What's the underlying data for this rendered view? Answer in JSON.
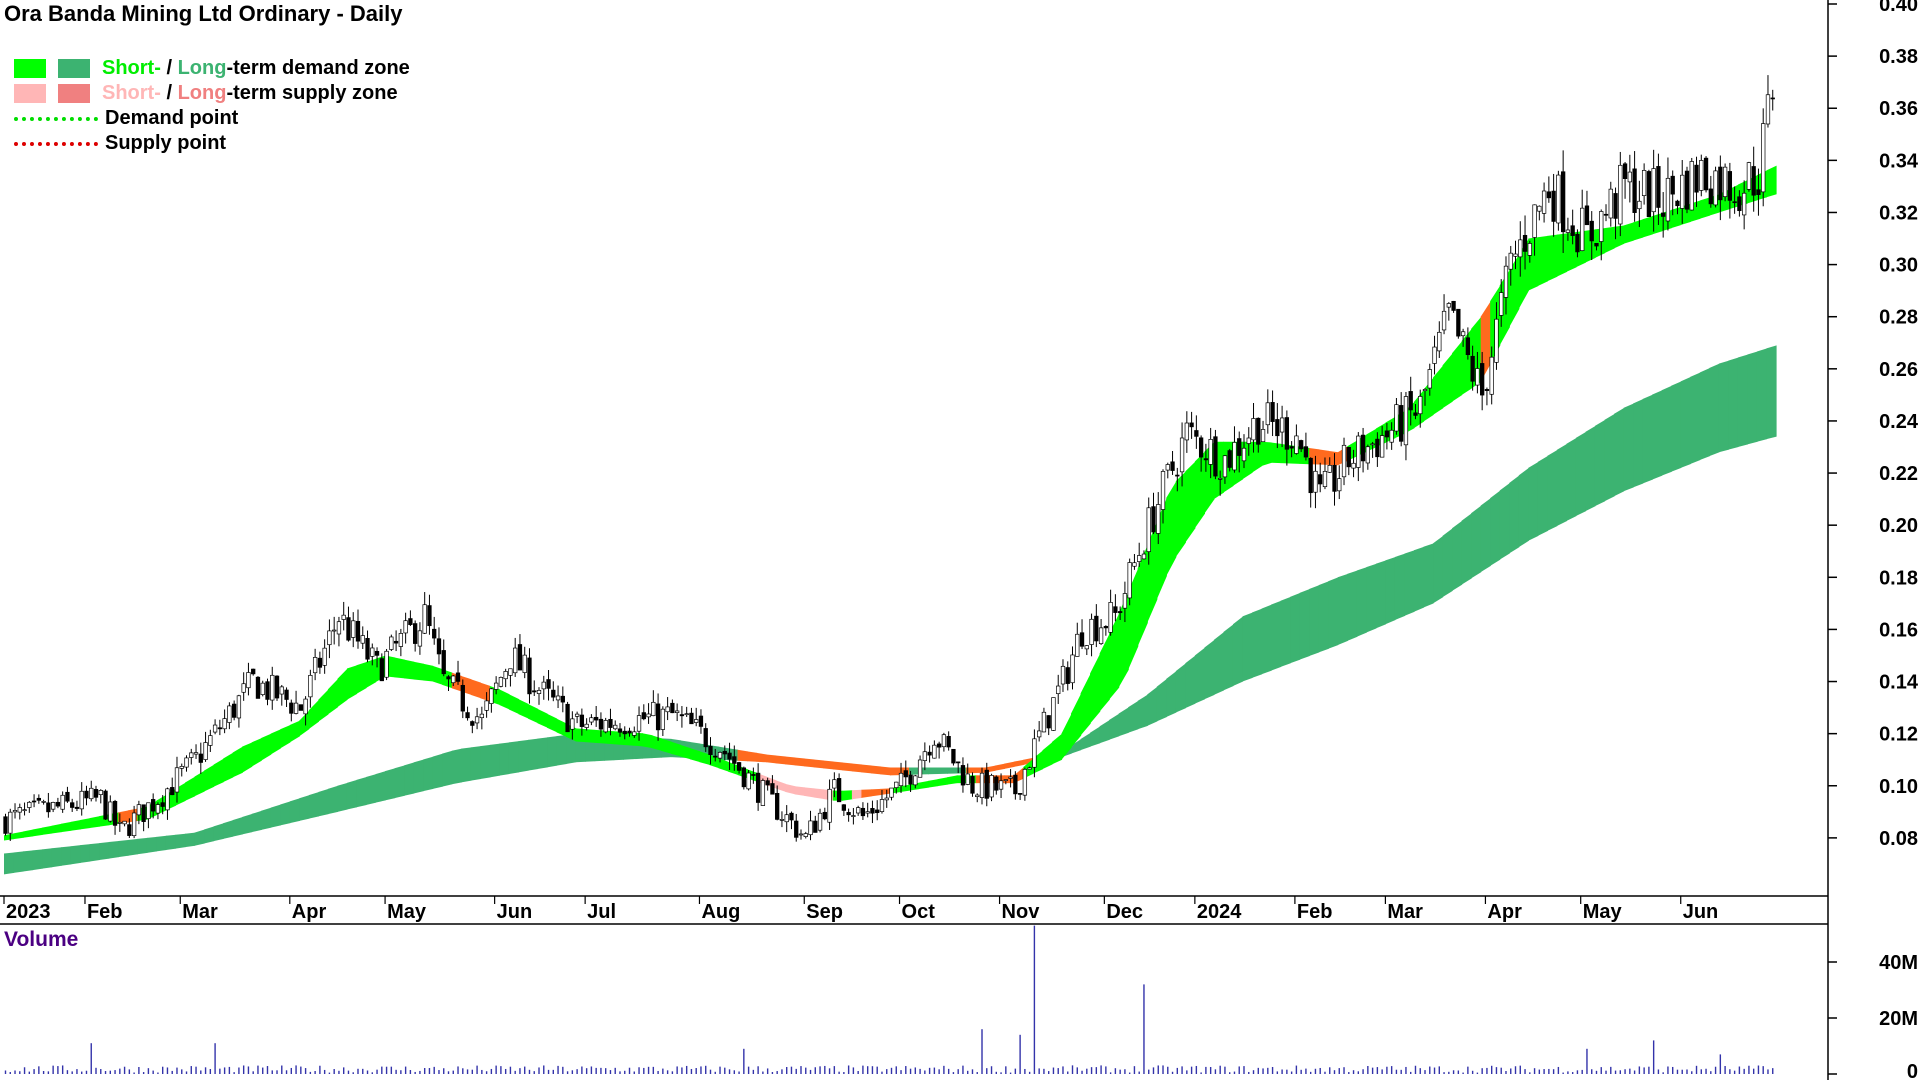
{
  "title": "Ora Banda Mining Ltd Ordinary - Daily",
  "legend": {
    "short_word": "Short-",
    "slash": " / ",
    "long_word": "Long",
    "demand_suffix": "-term demand zone",
    "supply_suffix": "-term supply zone",
    "demand_point": "Demand point",
    "supply_point": "Supply point"
  },
  "colors": {
    "short_demand": "#00ff00",
    "long_demand": "#3cb371",
    "short_supply": "#ffb6b6",
    "long_supply": "#f08080",
    "supply_zone_fill": "#ff6a1e",
    "demand_point": "#00dd00",
    "supply_point": "#dd0000",
    "volume": "#3333aa"
  },
  "volume_label": "Volume",
  "chart_data": {
    "type": "candlestick",
    "x_ticks": [
      "2023",
      "Feb",
      "Mar",
      "Apr",
      "May",
      "Jun",
      "Jul",
      "Aug",
      "Sep",
      "Oct",
      "Nov",
      "Dec",
      "2024",
      "Feb",
      "Mar",
      "Apr",
      "May",
      "Jun"
    ],
    "y_ticks": [
      "0.08",
      "0.10",
      "0.12",
      "0.14",
      "0.16",
      "0.18",
      "0.20",
      "0.22",
      "0.24",
      "0.26",
      "0.28",
      "0.30",
      "0.32",
      "0.34",
      "0.36",
      "0.38",
      "0.40"
    ],
    "ylim": [
      0.06,
      0.4
    ],
    "volume_ticks": [
      "0",
      "20M",
      "40M"
    ],
    "volume_ylim": [
      0,
      55
    ],
    "price_anchors": [
      [
        0,
        0.087
      ],
      [
        7,
        0.09
      ],
      [
        20,
        0.095
      ],
      [
        24,
        0.082
      ],
      [
        33,
        0.097
      ],
      [
        40,
        0.11
      ],
      [
        52,
        0.14
      ],
      [
        62,
        0.13
      ],
      [
        70,
        0.165
      ],
      [
        78,
        0.145
      ],
      [
        88,
        0.165
      ],
      [
        92,
        0.14
      ],
      [
        100,
        0.125
      ],
      [
        106,
        0.15
      ],
      [
        113,
        0.135
      ],
      [
        120,
        0.123
      ],
      [
        130,
        0.125
      ],
      [
        140,
        0.127
      ],
      [
        150,
        0.115
      ],
      [
        160,
        0.095
      ],
      [
        168,
        0.08
      ],
      [
        174,
        0.098
      ],
      [
        180,
        0.088
      ],
      [
        188,
        0.1
      ],
      [
        195,
        0.12
      ],
      [
        203,
        0.1
      ],
      [
        212,
        0.098
      ],
      [
        222,
        0.14
      ],
      [
        226,
        0.16
      ],
      [
        233,
        0.165
      ],
      [
        240,
        0.2
      ],
      [
        248,
        0.235
      ],
      [
        256,
        0.225
      ],
      [
        263,
        0.24
      ],
      [
        271,
        0.235
      ],
      [
        276,
        0.21
      ],
      [
        282,
        0.225
      ],
      [
        290,
        0.235
      ],
      [
        297,
        0.245
      ],
      [
        303,
        0.28
      ],
      [
        310,
        0.25
      ],
      [
        316,
        0.3
      ],
      [
        324,
        0.33
      ],
      [
        332,
        0.31
      ],
      [
        340,
        0.33
      ],
      [
        348,
        0.325
      ],
      [
        356,
        0.335
      ],
      [
        364,
        0.33
      ],
      [
        368,
        0.335
      ],
      [
        372,
        0.38
      ]
    ],
    "short_demand_upper": [
      [
        0,
        0.081
      ],
      [
        30,
        0.092
      ],
      [
        50,
        0.115
      ],
      [
        62,
        0.125
      ],
      [
        72,
        0.145
      ],
      [
        80,
        0.15
      ],
      [
        90,
        0.146
      ],
      [
        104,
        0.137
      ],
      [
        120,
        0.122
      ],
      [
        135,
        0.12
      ],
      [
        148,
        0.112
      ],
      [
        165,
        0.1
      ],
      [
        175,
        0.098
      ],
      [
        186,
        0.099
      ],
      [
        200,
        0.104
      ],
      [
        212,
        0.104
      ],
      [
        222,
        0.12
      ],
      [
        235,
        0.17
      ],
      [
        245,
        0.215
      ],
      [
        254,
        0.232
      ],
      [
        265,
        0.232
      ],
      [
        280,
        0.228
      ],
      [
        295,
        0.245
      ],
      [
        310,
        0.28
      ],
      [
        320,
        0.31
      ],
      [
        340,
        0.315
      ],
      [
        360,
        0.327
      ],
      [
        372,
        0.338
      ]
    ],
    "short_demand_lower": [
      [
        0,
        0.079
      ],
      [
        30,
        0.087
      ],
      [
        50,
        0.105
      ],
      [
        62,
        0.119
      ],
      [
        72,
        0.133
      ],
      [
        80,
        0.142
      ],
      [
        90,
        0.14
      ],
      [
        104,
        0.131
      ],
      [
        120,
        0.117
      ],
      [
        135,
        0.115
      ],
      [
        148,
        0.108
      ],
      [
        165,
        0.097
      ],
      [
        175,
        0.094
      ],
      [
        186,
        0.097
      ],
      [
        200,
        0.101
      ],
      [
        212,
        0.101
      ],
      [
        222,
        0.11
      ],
      [
        235,
        0.14
      ],
      [
        245,
        0.185
      ],
      [
        254,
        0.21
      ],
      [
        265,
        0.224
      ],
      [
        280,
        0.223
      ],
      [
        295,
        0.236
      ],
      [
        310,
        0.255
      ],
      [
        320,
        0.29
      ],
      [
        340,
        0.308
      ],
      [
        360,
        0.32
      ],
      [
        372,
        0.327
      ]
    ],
    "long_demand_upper": [
      [
        0,
        0.074
      ],
      [
        40,
        0.082
      ],
      [
        70,
        0.1
      ],
      [
        95,
        0.114
      ],
      [
        120,
        0.12
      ],
      [
        140,
        0.118
      ],
      [
        160,
        0.112
      ],
      [
        186,
        0.107
      ],
      [
        206,
        0.107
      ],
      [
        222,
        0.113
      ],
      [
        240,
        0.135
      ],
      [
        260,
        0.165
      ],
      [
        280,
        0.18
      ],
      [
        300,
        0.193
      ],
      [
        320,
        0.222
      ],
      [
        340,
        0.245
      ],
      [
        360,
        0.262
      ],
      [
        372,
        0.269
      ]
    ],
    "long_demand_lower": [
      [
        0,
        0.066
      ],
      [
        40,
        0.077
      ],
      [
        70,
        0.09
      ],
      [
        95,
        0.101
      ],
      [
        120,
        0.109
      ],
      [
        140,
        0.111
      ],
      [
        160,
        0.109
      ],
      [
        186,
        0.104
      ],
      [
        206,
        0.105
      ],
      [
        222,
        0.111
      ],
      [
        240,
        0.123
      ],
      [
        260,
        0.14
      ],
      [
        280,
        0.154
      ],
      [
        300,
        0.17
      ],
      [
        320,
        0.194
      ],
      [
        340,
        0.213
      ],
      [
        360,
        0.228
      ],
      [
        372,
        0.234
      ]
    ],
    "volume_spikes": [
      [
        216,
        53
      ],
      [
        239,
        32
      ],
      [
        205,
        16
      ],
      [
        213,
        14
      ],
      [
        346,
        12
      ],
      [
        18,
        11
      ],
      [
        44,
        11
      ],
      [
        155,
        9
      ],
      [
        332,
        9
      ],
      [
        360,
        7
      ]
    ],
    "plot_area": {
      "price_top": 0.4,
      "price_bottom": 0.06
    }
  }
}
